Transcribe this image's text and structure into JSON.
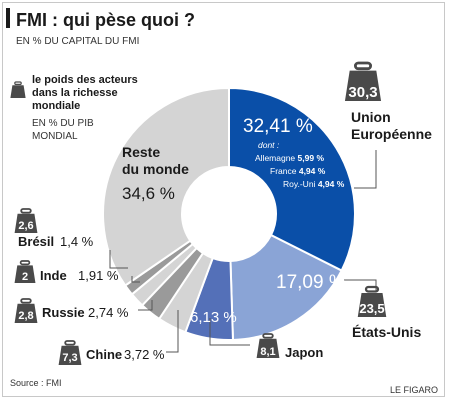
{
  "header": {
    "title": "FMI : qui pèse quoi ?",
    "subtitle": "EN % DU CAPITAL DU FMI"
  },
  "legend": {
    "line1": "le poids des acteurs",
    "line2": "dans la richesse",
    "line3": "mondiale",
    "line4": "EN % DU PIB",
    "line5": "MONDIAL"
  },
  "footer": {
    "source": "Source : FMI",
    "credit": "LE FIGARO"
  },
  "colors": {
    "eu": "#0a4fa8",
    "us": "#8aa4d6",
    "japan": "#5470b8",
    "grey_light": "#d4d4d4",
    "grey_dark": "#9a9a9a",
    "weight": "#4a4a4a"
  },
  "chart_data": {
    "type": "pie",
    "title": "FMI : qui pèse quoi ?",
    "subtitle": "EN % DU CAPITAL DU FMI",
    "slices": [
      {
        "name": "Union Européenne",
        "label_line1": "Union",
        "label_line2": "Européenne",
        "value": 32.41,
        "value_text": "32,41 %",
        "gdp_share": "30,3"
      },
      {
        "name": "États-Unis",
        "value": 17.09,
        "value_text": "17,09 %",
        "gdp_share": "23,5"
      },
      {
        "name": "Japon",
        "value": 6.13,
        "value_text": "6,13 %",
        "gdp_share": "8,1"
      },
      {
        "name": "Chine",
        "value": 3.72,
        "value_text": "3,72 %",
        "gdp_share": "7,3"
      },
      {
        "name": "Russie",
        "value": 2.74,
        "value_text": "2,74 %",
        "gdp_share": "2,8"
      },
      {
        "name": "Inde",
        "value": 1.91,
        "value_text": "1,91 %",
        "gdp_share": "2"
      },
      {
        "name": "Brésil",
        "value": 1.4,
        "value_text": "1,4 %",
        "gdp_share": "2,6"
      },
      {
        "name": "Reste du monde",
        "label_line1": "Reste",
        "label_line2": "du monde",
        "value": 34.6,
        "value_text": "34,6 %"
      }
    ],
    "eu_detail": {
      "dont": "dont :",
      "items": [
        {
          "name": "Allemagne",
          "value": "5,99 %"
        },
        {
          "name": "France",
          "value": "4,94 %"
        },
        {
          "name": "Roy.-Uni",
          "value": "4,94 %"
        }
      ]
    }
  }
}
